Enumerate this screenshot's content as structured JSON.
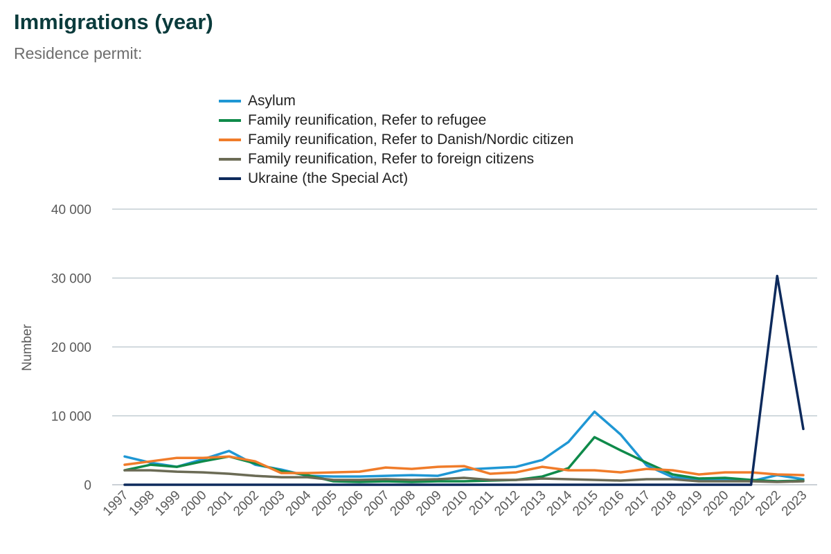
{
  "header": {
    "title": "Immigrations (year)",
    "subtitle": "Residence permit:"
  },
  "chart_data": {
    "type": "line",
    "title": "Immigrations (year)",
    "subtitle": "Residence permit:",
    "xlabel": "",
    "ylabel": "Number",
    "ylim": [
      0,
      40000
    ],
    "yticks": [
      0,
      10000,
      20000,
      30000,
      40000
    ],
    "ytick_labels": [
      "0",
      "10 000",
      "20 000",
      "30 000",
      "40 000"
    ],
    "grid": true,
    "legend_position": "top-center",
    "x": [
      "1997",
      "1998",
      "1999",
      "2000",
      "2001",
      "2002",
      "2003",
      "2004",
      "2005",
      "2006",
      "2007",
      "2008",
      "2009",
      "2010",
      "2011",
      "2012",
      "2013",
      "2014",
      "2015",
      "2016",
      "2017",
      "2018",
      "2019",
      "2020",
      "2021",
      "2022",
      "2023"
    ],
    "series": [
      {
        "name": "Asylum",
        "color": "#1f97d4",
        "values": [
          4100,
          3200,
          2600,
          3700,
          4900,
          2900,
          2200,
          1300,
          1200,
          1200,
          1300,
          1400,
          1300,
          2200,
          2400,
          2600,
          3600,
          6200,
          10600,
          7300,
          2800,
          1100,
          800,
          700,
          500,
          1400,
          800
        ]
      },
      {
        "name": "Family reunification, Refer to refugee",
        "color": "#0f8a4a",
        "values": [
          2100,
          2900,
          2600,
          3400,
          4100,
          3100,
          2000,
          1400,
          500,
          400,
          500,
          400,
          500,
          500,
          600,
          700,
          1200,
          2400,
          6900,
          5000,
          3200,
          1500,
          900,
          1000,
          700,
          500,
          600
        ]
      },
      {
        "name": "Family reunification, Refer to Danish/Nordic citizen",
        "color": "#f07c2a",
        "values": [
          2900,
          3400,
          3900,
          3900,
          4100,
          3400,
          1700,
          1700,
          1800,
          1900,
          2500,
          2300,
          2600,
          2700,
          1600,
          1800,
          2600,
          2100,
          2100,
          1800,
          2300,
          2100,
          1500,
          1800,
          1800,
          1500,
          1400
        ]
      },
      {
        "name": "Family reunification, Refer to foreign citizens",
        "color": "#6b6b55",
        "values": [
          2100,
          2100,
          1900,
          1800,
          1600,
          1300,
          1100,
          1100,
          700,
          700,
          800,
          700,
          800,
          1000,
          700,
          700,
          900,
          800,
          700,
          600,
          800,
          800,
          500,
          500,
          500,
          400,
          500
        ]
      },
      {
        "name": "Ukraine (the Special Act)",
        "color": "#0d2a5c",
        "values": [
          0,
          0,
          0,
          0,
          0,
          0,
          0,
          0,
          0,
          0,
          0,
          0,
          0,
          0,
          0,
          0,
          0,
          0,
          0,
          0,
          0,
          0,
          0,
          0,
          0,
          30300,
          8100
        ]
      }
    ]
  }
}
